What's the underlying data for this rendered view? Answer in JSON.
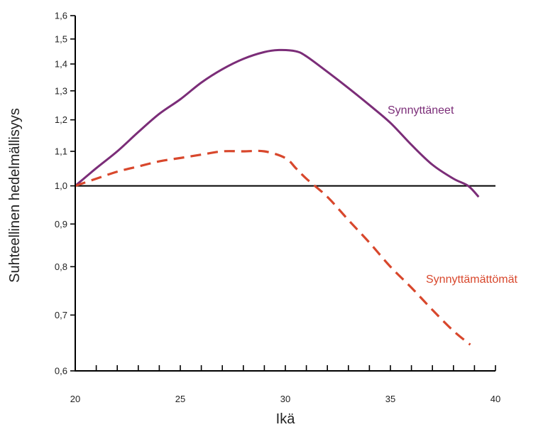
{
  "chart_data": {
    "type": "line",
    "xlabel": "Ikä",
    "ylabel": "Suhteellinen hedelmällisyys",
    "xlim": [
      20,
      40
    ],
    "ylim": [
      0.6,
      1.6
    ],
    "y_scale": "log",
    "x_ticks": [
      20,
      25,
      30,
      35,
      40
    ],
    "x_tick_labels": [
      "20",
      "25",
      "30",
      "35",
      "40"
    ],
    "x_minor_step": 1,
    "y_ticks": [
      0.6,
      0.7,
      0.8,
      0.9,
      1.0,
      1.1,
      1.2,
      1.3,
      1.4,
      1.5,
      1.6
    ],
    "y_tick_labels": [
      "0,6",
      "0,7",
      "0,8",
      "0,9",
      "1,0",
      "1,1",
      "1,2",
      "1,3",
      "1,4",
      "1,5",
      "1,6"
    ],
    "grid": false,
    "reference_line": {
      "y": 1.0,
      "color": "#000000"
    },
    "series": [
      {
        "name": "Synnyttäneet",
        "color": "#7b2d78",
        "style": "solid",
        "x": [
          20,
          21,
          22,
          23,
          24,
          25,
          26,
          27,
          28,
          29,
          29.7,
          30.5,
          31,
          32,
          33,
          34,
          35,
          36,
          37,
          38,
          38.7,
          39.2
        ],
        "y": [
          1.0,
          1.05,
          1.1,
          1.16,
          1.22,
          1.27,
          1.33,
          1.38,
          1.42,
          1.447,
          1.455,
          1.45,
          1.43,
          1.37,
          1.31,
          1.25,
          1.19,
          1.12,
          1.06,
          1.02,
          1.0,
          0.97
        ]
      },
      {
        "name": "Synnyttämättömät",
        "color": "#d8472c",
        "style": "dashed",
        "x": [
          20,
          21,
          22,
          23,
          24,
          25,
          26,
          27,
          28,
          29,
          30,
          30.5,
          31,
          32,
          33,
          34,
          35,
          36,
          37,
          38,
          38.8
        ],
        "y": [
          1.0,
          1.02,
          1.04,
          1.055,
          1.07,
          1.08,
          1.09,
          1.1,
          1.1,
          1.1,
          1.08,
          1.05,
          1.02,
          0.97,
          0.91,
          0.855,
          0.8,
          0.755,
          0.71,
          0.67,
          0.645
        ]
      }
    ]
  }
}
